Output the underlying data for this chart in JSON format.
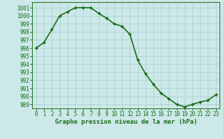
{
  "x": [
    0,
    1,
    2,
    3,
    4,
    5,
    6,
    7,
    8,
    9,
    10,
    11,
    12,
    13,
    14,
    15,
    16,
    17,
    18,
    19,
    20,
    21,
    22,
    23
  ],
  "y": [
    996.0,
    996.7,
    998.3,
    1000.0,
    1000.5,
    1001.0,
    1001.0,
    1001.0,
    1000.3,
    999.7,
    999.0,
    998.7,
    997.7,
    994.5,
    992.8,
    991.5,
    990.4,
    989.7,
    989.0,
    988.7,
    989.0,
    989.3,
    989.5,
    990.2
  ],
  "line_color": "#1a6e1a",
  "marker": "D",
  "markersize": 2.2,
  "bg_color": "#cce8e8",
  "grid_color": "#aacccc",
  "ylabel_ticks": [
    989,
    990,
    991,
    992,
    993,
    994,
    995,
    996,
    997,
    998,
    999,
    1000,
    1001
  ],
  "ylim": [
    988.5,
    1001.7
  ],
  "xlim": [
    -0.5,
    23.5
  ],
  "xlabel": "Graphe pression niveau de la mer (hPa)",
  "xlabel_fontsize": 6.5,
  "tick_fontsize": 5.5,
  "line_width": 1.2
}
